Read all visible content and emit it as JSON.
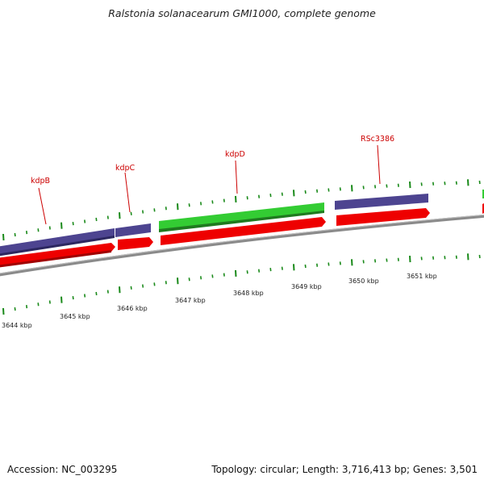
{
  "title": "Ralstonia solanacearum GMI1000, complete genome",
  "footer": {
    "accession": "Accession: NC_003295",
    "topology": "Topology: circular; Length: 3,716,413 bp; Genes: 3,501"
  },
  "gene_labels": [
    {
      "name": "kdpB-label",
      "text": "kdpB"
    },
    {
      "name": "kdpC-label",
      "text": "kdpC"
    },
    {
      "name": "kdpD-label",
      "text": "kdpD"
    },
    {
      "name": "rsc3386-label",
      "text": "RSc3386"
    }
  ],
  "kbp_labels": [
    {
      "name": "tick-label-3644",
      "text": "3644 kbp"
    },
    {
      "name": "tick-label-3645",
      "text": "3645 kbp"
    },
    {
      "name": "tick-label-3646",
      "text": "3646 kbp"
    },
    {
      "name": "tick-label-3647",
      "text": "3647 kbp"
    },
    {
      "name": "tick-label-3648",
      "text": "3648 kbp"
    },
    {
      "name": "tick-label-3649",
      "text": "3649 kbp"
    },
    {
      "name": "tick-label-3650",
      "text": "3650 kbp"
    },
    {
      "name": "tick-label-3651",
      "text": "3651 kbp"
    }
  ],
  "colors": {
    "backbone": "#8a8a8a",
    "cds_reverse": "#4d4490",
    "cds_forward": "#ee0000",
    "cds_green": "#33cc33",
    "ticks": "#1a8a1a",
    "label_text": "#cc0000",
    "leader_line": "#cc0000"
  }
}
